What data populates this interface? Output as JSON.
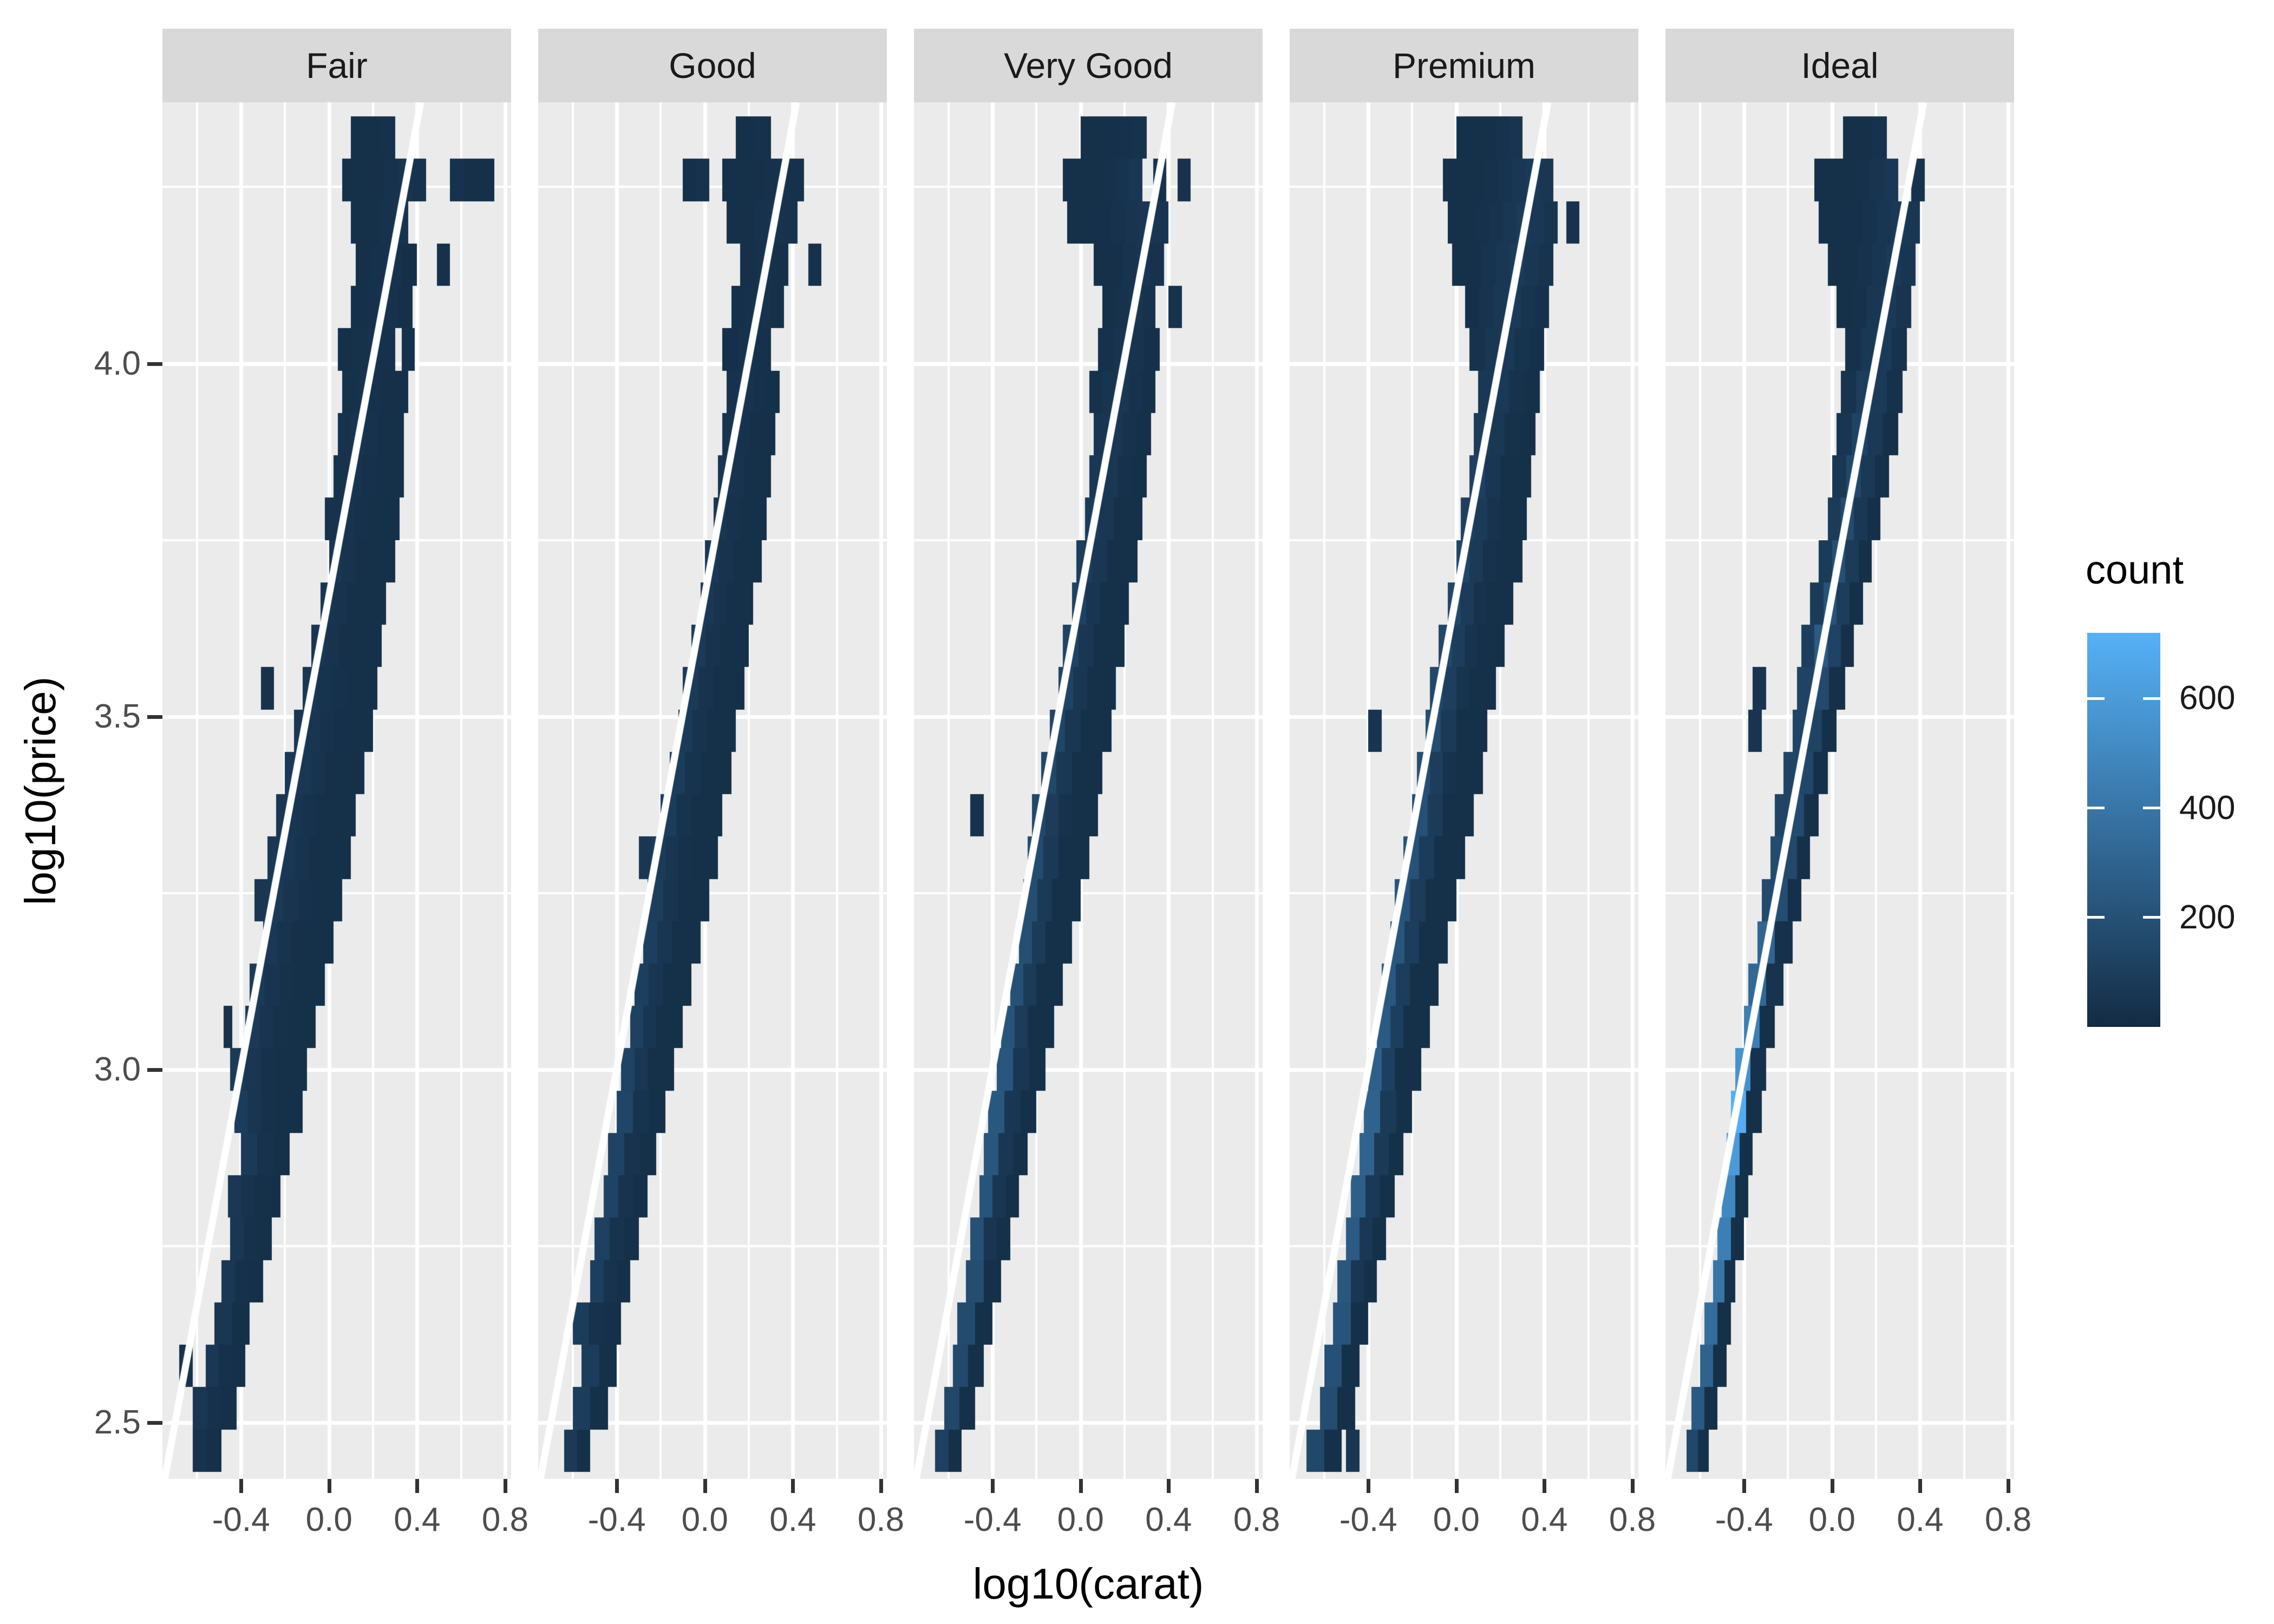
{
  "figure": {
    "background": "#FFFFFF"
  },
  "axes": {
    "x": {
      "title": "log10(carat)",
      "tick_labels": [
        "-0.4",
        "0.0",
        "0.4",
        "0.8"
      ],
      "tick_values": [
        -0.4,
        0.0,
        0.4,
        0.8
      ],
      "minor_values": [
        -0.6,
        -0.2,
        0.2,
        0.6
      ],
      "range": [
        -0.757,
        0.827
      ]
    },
    "y": {
      "title": "log10(price)",
      "tick_labels": [
        "2.5",
        "3.0",
        "3.5",
        "4.0"
      ],
      "tick_values": [
        2.5,
        3.0,
        3.5,
        4.0
      ],
      "minor_values": [
        2.75,
        3.25,
        3.75,
        4.25
      ],
      "range": [
        2.42,
        4.37
      ]
    }
  },
  "legend": {
    "title": "count",
    "tick_labels": [
      "600",
      "400",
      "200"
    ],
    "tick_values": [
      600,
      400,
      200
    ],
    "min": 0,
    "max": 720,
    "color_low": "#132B43",
    "color_high": "#56B1F7"
  },
  "style": {
    "panel_bg": "#EBEBEB",
    "strip_bg": "#D9D9D9",
    "grid": "#FFFFFF",
    "tick_color": "#333333",
    "axis_text": "#4D4D4D",
    "fit_line": "#FFFFFF"
  },
  "chart_data": {
    "type": "heatmap",
    "subtype": "bin2d-faceted",
    "xlabel": "log10(carat)",
    "ylabel": "log10(price)",
    "x_range": [
      -0.757,
      0.827
    ],
    "y_range": [
      2.42,
      4.37
    ],
    "bin_width_x": 0.065,
    "bin_height_y": 0.06,
    "max_count": 720,
    "fit_line": {
      "slope": 1.676,
      "intercept": 3.672,
      "color": "#FFFFFF"
    },
    "segment_format": [
      "y_center",
      "x_start",
      "x_end",
      "peak_count"
    ],
    "facets": [
      {
        "label": "Fair",
        "segments": [
          [
            2.46,
            -0.62,
            -0.49,
            40
          ],
          [
            2.52,
            -0.62,
            -0.42,
            60
          ],
          [
            2.58,
            -0.68,
            -0.62,
            40
          ],
          [
            2.58,
            -0.56,
            -0.38,
            70
          ],
          [
            2.64,
            -0.52,
            -0.36,
            60
          ],
          [
            2.7,
            -0.49,
            -0.3,
            70
          ],
          [
            2.76,
            -0.45,
            -0.26,
            60
          ],
          [
            2.82,
            -0.46,
            -0.22,
            70
          ],
          [
            2.88,
            -0.4,
            -0.18,
            80
          ],
          [
            2.94,
            -0.43,
            -0.12,
            90
          ],
          [
            3.0,
            -0.45,
            -0.1,
            90
          ],
          [
            3.06,
            -0.48,
            -0.44,
            40
          ],
          [
            3.06,
            -0.38,
            -0.06,
            80
          ],
          [
            3.12,
            -0.36,
            -0.02,
            80
          ],
          [
            3.18,
            -0.3,
            0.02,
            70
          ],
          [
            3.24,
            -0.34,
            0.06,
            80
          ],
          [
            3.3,
            -0.28,
            0.1,
            80
          ],
          [
            3.36,
            -0.24,
            0.12,
            70
          ],
          [
            3.42,
            -0.2,
            0.16,
            80
          ],
          [
            3.48,
            -0.16,
            0.2,
            70
          ],
          [
            3.54,
            -0.31,
            -0.25,
            40
          ],
          [
            3.54,
            -0.12,
            0.22,
            70
          ],
          [
            3.6,
            -0.08,
            0.24,
            60
          ],
          [
            3.66,
            -0.04,
            0.26,
            60
          ],
          [
            3.72,
            0.0,
            0.3,
            60
          ],
          [
            3.78,
            -0.02,
            0.32,
            50
          ],
          [
            3.84,
            0.02,
            0.34,
            50
          ],
          [
            3.9,
            0.04,
            0.34,
            50
          ],
          [
            3.96,
            0.06,
            0.36,
            40
          ],
          [
            4.02,
            0.04,
            0.3,
            40
          ],
          [
            4.02,
            0.33,
            0.39,
            30
          ],
          [
            4.08,
            0.1,
            0.38,
            40
          ],
          [
            4.14,
            0.12,
            0.4,
            40
          ],
          [
            4.14,
            0.49,
            0.55,
            30
          ],
          [
            4.2,
            0.1,
            0.36,
            50
          ],
          [
            4.26,
            0.06,
            0.44,
            50
          ],
          [
            4.26,
            0.55,
            0.75,
            40
          ],
          [
            4.32,
            0.1,
            0.3,
            30
          ]
        ]
      },
      {
        "label": "Good",
        "segments": [
          [
            2.46,
            -0.64,
            -0.52,
            80
          ],
          [
            2.52,
            -0.6,
            -0.44,
            100
          ],
          [
            2.58,
            -0.56,
            -0.4,
            90
          ],
          [
            2.64,
            -0.6,
            -0.38,
            90
          ],
          [
            2.7,
            -0.52,
            -0.34,
            110
          ],
          [
            2.76,
            -0.5,
            -0.3,
            120
          ],
          [
            2.82,
            -0.46,
            -0.26,
            130
          ],
          [
            2.88,
            -0.44,
            -0.22,
            130
          ],
          [
            2.94,
            -0.4,
            -0.18,
            140
          ],
          [
            3.0,
            -0.38,
            -0.14,
            130
          ],
          [
            3.06,
            -0.34,
            -0.1,
            120
          ],
          [
            3.12,
            -0.32,
            -0.06,
            110
          ],
          [
            3.18,
            -0.28,
            -0.02,
            110
          ],
          [
            3.24,
            -0.26,
            0.02,
            100
          ],
          [
            3.3,
            -0.3,
            0.06,
            90
          ],
          [
            3.36,
            -0.2,
            0.08,
            90
          ],
          [
            3.42,
            -0.16,
            0.12,
            90
          ],
          [
            3.48,
            -0.12,
            0.14,
            80
          ],
          [
            3.54,
            -0.1,
            0.18,
            80
          ],
          [
            3.6,
            -0.06,
            0.2,
            80
          ],
          [
            3.66,
            -0.02,
            0.22,
            70
          ],
          [
            3.72,
            0.0,
            0.26,
            70
          ],
          [
            3.78,
            0.04,
            0.28,
            60
          ],
          [
            3.84,
            0.06,
            0.3,
            60
          ],
          [
            3.9,
            0.08,
            0.32,
            50
          ],
          [
            3.96,
            0.1,
            0.34,
            50
          ],
          [
            4.02,
            0.08,
            0.3,
            40
          ],
          [
            4.08,
            0.12,
            0.36,
            40
          ],
          [
            4.14,
            0.16,
            0.38,
            40
          ],
          [
            4.14,
            0.47,
            0.53,
            30
          ],
          [
            4.2,
            0.1,
            0.42,
            50
          ],
          [
            4.26,
            -0.1,
            0.02,
            40
          ],
          [
            4.26,
            0.08,
            0.45,
            40
          ],
          [
            4.32,
            0.14,
            0.3,
            30
          ]
        ]
      },
      {
        "label": "Very Good",
        "segments": [
          [
            2.46,
            -0.66,
            -0.54,
            120
          ],
          [
            2.52,
            -0.62,
            -0.48,
            150
          ],
          [
            2.58,
            -0.58,
            -0.44,
            160
          ],
          [
            2.64,
            -0.56,
            -0.4,
            170
          ],
          [
            2.7,
            -0.52,
            -0.36,
            180
          ],
          [
            2.76,
            -0.5,
            -0.32,
            200
          ],
          [
            2.82,
            -0.46,
            -0.28,
            220
          ],
          [
            2.88,
            -0.44,
            -0.24,
            230
          ],
          [
            2.94,
            -0.42,
            -0.2,
            240
          ],
          [
            3.0,
            -0.38,
            -0.16,
            230
          ],
          [
            3.06,
            -0.36,
            -0.12,
            220
          ],
          [
            3.12,
            -0.32,
            -0.08,
            200
          ],
          [
            3.18,
            -0.28,
            -0.04,
            190
          ],
          [
            3.24,
            -0.26,
            0.0,
            180
          ],
          [
            3.3,
            -0.24,
            0.04,
            170
          ],
          [
            3.36,
            -0.5,
            -0.44,
            40
          ],
          [
            3.36,
            -0.22,
            0.08,
            160
          ],
          [
            3.42,
            -0.18,
            0.1,
            150
          ],
          [
            3.48,
            -0.14,
            0.14,
            140
          ],
          [
            3.54,
            -0.1,
            0.16,
            130
          ],
          [
            3.6,
            -0.08,
            0.2,
            130
          ],
          [
            3.66,
            -0.04,
            0.22,
            120
          ],
          [
            3.72,
            -0.02,
            0.26,
            110
          ],
          [
            3.78,
            0.02,
            0.28,
            100
          ],
          [
            3.84,
            0.04,
            0.3,
            90
          ],
          [
            3.9,
            0.06,
            0.32,
            80
          ],
          [
            3.96,
            0.04,
            0.34,
            70
          ],
          [
            4.02,
            0.08,
            0.36,
            60
          ],
          [
            4.08,
            0.1,
            0.34,
            60
          ],
          [
            4.08,
            0.4,
            0.46,
            40
          ],
          [
            4.14,
            0.06,
            0.38,
            60
          ],
          [
            4.2,
            -0.06,
            0.4,
            70
          ],
          [
            4.26,
            -0.08,
            0.28,
            60
          ],
          [
            4.26,
            0.33,
            0.39,
            40
          ],
          [
            4.26,
            0.44,
            0.5,
            40
          ],
          [
            4.32,
            0.0,
            0.3,
            40
          ]
        ]
      },
      {
        "label": "Premium",
        "segments": [
          [
            2.46,
            -0.68,
            -0.52,
            150
          ],
          [
            2.46,
            -0.5,
            -0.44,
            60
          ],
          [
            2.52,
            -0.62,
            -0.46,
            180
          ],
          [
            2.58,
            -0.6,
            -0.44,
            200
          ],
          [
            2.64,
            -0.56,
            -0.4,
            220
          ],
          [
            2.7,
            -0.54,
            -0.36,
            240
          ],
          [
            2.76,
            -0.5,
            -0.32,
            260
          ],
          [
            2.82,
            -0.48,
            -0.28,
            280
          ],
          [
            2.88,
            -0.44,
            -0.24,
            300
          ],
          [
            2.94,
            -0.42,
            -0.2,
            300
          ],
          [
            3.0,
            -0.4,
            -0.16,
            280
          ],
          [
            3.06,
            -0.36,
            -0.12,
            260
          ],
          [
            3.12,
            -0.34,
            -0.08,
            240
          ],
          [
            3.18,
            -0.3,
            -0.04,
            230
          ],
          [
            3.24,
            -0.28,
            0.0,
            220
          ],
          [
            3.3,
            -0.24,
            0.04,
            210
          ],
          [
            3.36,
            -0.2,
            0.08,
            200
          ],
          [
            3.42,
            -0.18,
            0.12,
            190
          ],
          [
            3.48,
            -0.4,
            -0.34,
            50
          ],
          [
            3.48,
            -0.14,
            0.14,
            180
          ],
          [
            3.54,
            -0.12,
            0.18,
            170
          ],
          [
            3.6,
            -0.08,
            0.22,
            160
          ],
          [
            3.66,
            -0.04,
            0.26,
            150
          ],
          [
            3.72,
            0.0,
            0.3,
            140
          ],
          [
            3.78,
            0.02,
            0.32,
            130
          ],
          [
            3.84,
            0.06,
            0.34,
            120
          ],
          [
            3.9,
            0.08,
            0.36,
            110
          ],
          [
            3.96,
            0.1,
            0.38,
            100
          ],
          [
            4.02,
            0.06,
            0.4,
            90
          ],
          [
            4.08,
            0.04,
            0.42,
            90
          ],
          [
            4.14,
            -0.02,
            0.44,
            90
          ],
          [
            4.2,
            -0.04,
            0.46,
            90
          ],
          [
            4.2,
            0.5,
            0.56,
            40
          ],
          [
            4.26,
            -0.06,
            0.44,
            80
          ],
          [
            4.32,
            0.0,
            0.3,
            50
          ]
        ]
      },
      {
        "label": "Ideal",
        "segments": [
          [
            2.46,
            -0.66,
            -0.56,
            150
          ],
          [
            2.52,
            -0.64,
            -0.52,
            250
          ],
          [
            2.58,
            -0.6,
            -0.48,
            300
          ],
          [
            2.64,
            -0.58,
            -0.46,
            350
          ],
          [
            2.7,
            -0.54,
            -0.44,
            400
          ],
          [
            2.76,
            -0.52,
            -0.4,
            450
          ],
          [
            2.82,
            -0.5,
            -0.38,
            500
          ],
          [
            2.88,
            -0.48,
            -0.36,
            600
          ],
          [
            2.94,
            -0.46,
            -0.32,
            700
          ],
          [
            3.0,
            -0.44,
            -0.3,
            600
          ],
          [
            3.06,
            -0.4,
            -0.26,
            450
          ],
          [
            3.12,
            -0.38,
            -0.22,
            400
          ],
          [
            3.18,
            -0.34,
            -0.18,
            350
          ],
          [
            3.24,
            -0.32,
            -0.14,
            300
          ],
          [
            3.3,
            -0.28,
            -0.1,
            280
          ],
          [
            3.36,
            -0.26,
            -0.06,
            260
          ],
          [
            3.42,
            -0.22,
            -0.02,
            240
          ],
          [
            3.48,
            -0.38,
            -0.32,
            50
          ],
          [
            3.48,
            -0.18,
            0.02,
            220
          ],
          [
            3.54,
            -0.36,
            -0.3,
            50
          ],
          [
            3.54,
            -0.16,
            0.06,
            250
          ],
          [
            3.6,
            -0.14,
            0.1,
            280
          ],
          [
            3.66,
            -0.1,
            0.14,
            220
          ],
          [
            3.72,
            -0.06,
            0.18,
            200
          ],
          [
            3.78,
            -0.02,
            0.22,
            180
          ],
          [
            3.84,
            0.0,
            0.26,
            160
          ],
          [
            3.9,
            0.02,
            0.3,
            140
          ],
          [
            3.96,
            0.04,
            0.32,
            120
          ],
          [
            4.02,
            0.06,
            0.34,
            100
          ],
          [
            4.08,
            0.02,
            0.36,
            90
          ],
          [
            4.14,
            -0.02,
            0.38,
            80
          ],
          [
            4.2,
            -0.06,
            0.4,
            80
          ],
          [
            4.26,
            -0.08,
            0.3,
            70
          ],
          [
            4.26,
            0.36,
            0.42,
            40
          ],
          [
            4.32,
            0.05,
            0.25,
            40
          ]
        ]
      }
    ]
  }
}
